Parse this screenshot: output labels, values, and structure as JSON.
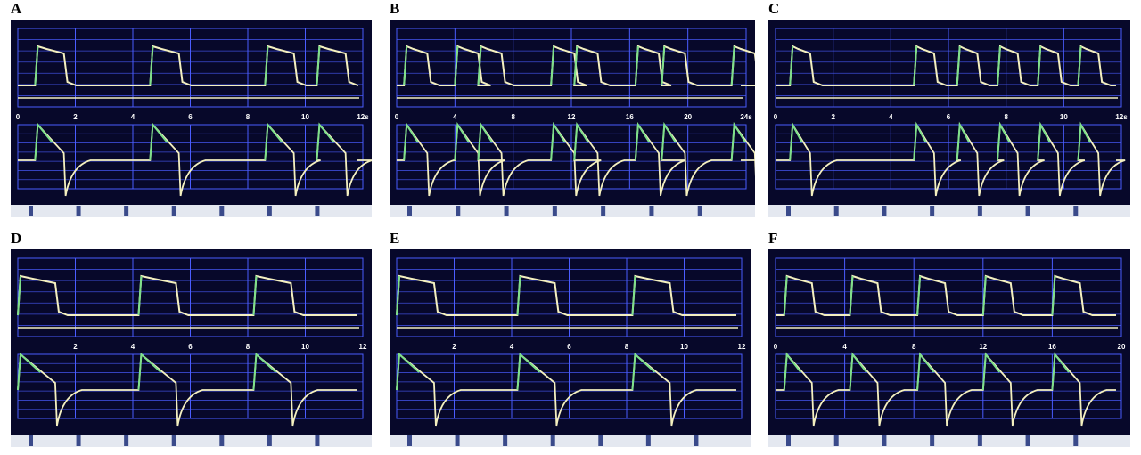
{
  "colors": {
    "screen": "#07082a",
    "grid": "#4a5cff",
    "trace_insp": "#7ee08a",
    "trace_exp": "#f4f0c0",
    "toolbar": "#e4e8f0"
  },
  "panels": [
    {
      "label": "A",
      "ticks": [
        "0",
        "2",
        "4",
        "6",
        "8",
        "10",
        "12s"
      ],
      "xmax": 12,
      "breaths": [
        0.6,
        4.6,
        8.6,
        10.4
      ],
      "dur": 1.0
    },
    {
      "label": "B",
      "ticks": [
        "0",
        "4",
        "8",
        "12",
        "16",
        "20",
        "24s"
      ],
      "xmax": 24,
      "breaths": [
        0.5,
        4.0,
        5.6,
        10.6,
        12.2,
        16.4,
        18.2,
        23.0
      ],
      "dur": 1.6
    },
    {
      "label": "C",
      "ticks": [
        "0",
        "2",
        "4",
        "6",
        "8",
        "10",
        "12s"
      ],
      "xmax": 12,
      "breaths": [
        0.5,
        4.8,
        6.3,
        7.7,
        9.1,
        10.5
      ],
      "dur": 0.7
    },
    {
      "label": "D",
      "ticks": [
        "",
        "2",
        "4",
        "6",
        "8",
        "10",
        "12"
      ],
      "xmax": 12,
      "breaths": [
        0.0,
        4.2,
        8.2
      ],
      "dur": 1.3
    },
    {
      "label": "E",
      "ticks": [
        "",
        "2",
        "4",
        "6",
        "8",
        "10",
        "12"
      ],
      "xmax": 12,
      "breaths": [
        0.0,
        4.2,
        8.2
      ],
      "dur": 1.3
    },
    {
      "label": "F",
      "ticks": [
        "0",
        "4",
        "8",
        "12",
        "16",
        "20"
      ],
      "xmax": 20,
      "breaths": [
        0.5,
        4.3,
        8.2,
        12.0,
        16.0
      ],
      "dur": 1.6
    }
  ]
}
